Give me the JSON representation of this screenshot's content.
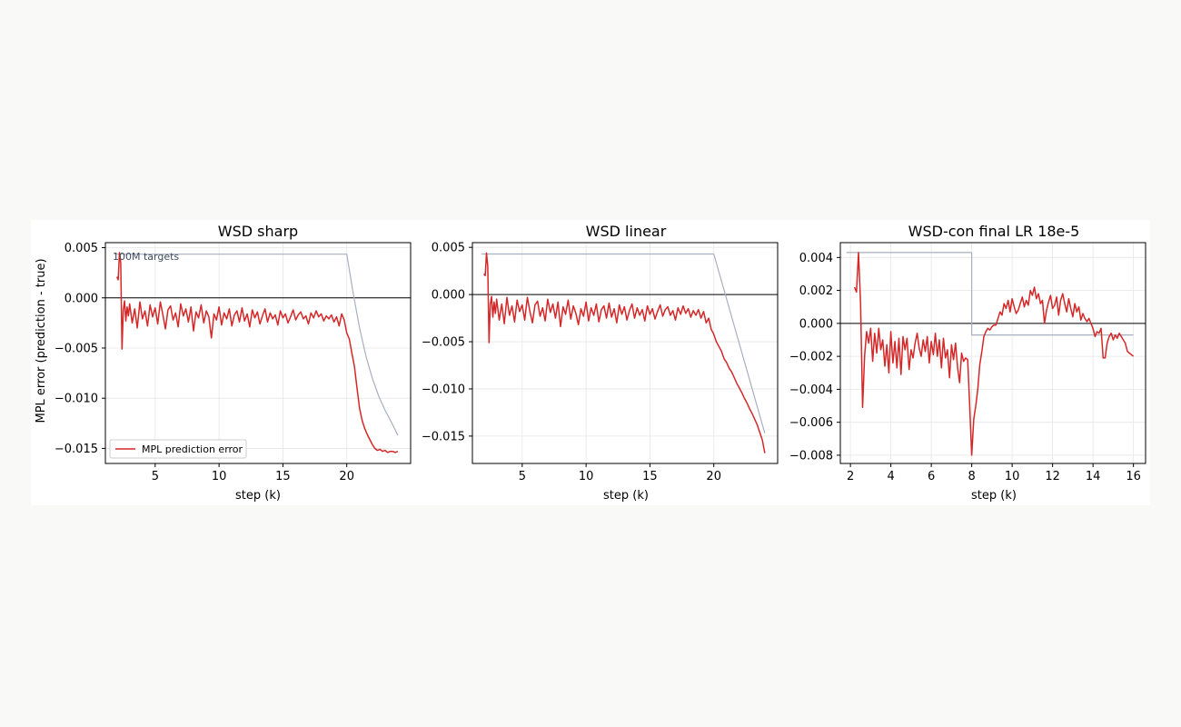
{
  "figure": {
    "ylabel": "MPL error (prediction - true)",
    "annotation": "100M targets",
    "legend_label": "MPL prediction error",
    "colors": {
      "error": "#d62728",
      "schedule": "#a9afbf",
      "zero_line": "#000000",
      "grid": "#e6e6e6"
    }
  },
  "chart_data": [
    {
      "type": "line",
      "title": "WSD sharp",
      "xlabel": "step (k)",
      "ylabel": "MPL error (prediction - true)",
      "xlim": [
        1.1,
        25.0
      ],
      "ylim": [
        -0.0165,
        0.0055
      ],
      "xticks": [
        5,
        10,
        15,
        20
      ],
      "xtick_labels": [
        "5",
        "10",
        "15",
        "20"
      ],
      "yticks": [
        0.005,
        0.0,
        -0.005,
        -0.01,
        -0.015
      ],
      "ytick_labels": [
        "0.005",
        "0.000",
        "−0.005",
        "−0.010",
        "−0.015"
      ],
      "grid": true,
      "legend": "lower-left",
      "series": [
        {
          "name": "MPL prediction error",
          "role": "error",
          "x": [
            2.0,
            2.1,
            2.2,
            2.3,
            2.4,
            2.5,
            2.6,
            2.7,
            2.8,
            2.9,
            3.0,
            3.2,
            3.4,
            3.6,
            3.8,
            4.0,
            4.2,
            4.4,
            4.6,
            4.8,
            5.0,
            5.2,
            5.4,
            5.6,
            5.8,
            6.0,
            6.2,
            6.4,
            6.6,
            6.8,
            7.0,
            7.2,
            7.4,
            7.6,
            7.8,
            8.0,
            8.2,
            8.4,
            8.6,
            8.8,
            9.0,
            9.2,
            9.4,
            9.6,
            9.8,
            10.0,
            10.2,
            10.4,
            10.6,
            10.8,
            11.0,
            11.2,
            11.4,
            11.6,
            11.8,
            12.0,
            12.2,
            12.4,
            12.6,
            12.8,
            13.0,
            13.2,
            13.4,
            13.6,
            13.8,
            14.0,
            14.2,
            14.4,
            14.6,
            14.8,
            15.0,
            15.2,
            15.4,
            15.6,
            15.8,
            16.0,
            16.2,
            16.4,
            16.6,
            16.8,
            17.0,
            17.2,
            17.4,
            17.6,
            17.8,
            18.0,
            18.2,
            18.4,
            18.6,
            18.8,
            19.0,
            19.2,
            19.4,
            19.6,
            19.8,
            20.0,
            20.2,
            20.4,
            20.6,
            20.8,
            21.0,
            21.2,
            21.4,
            21.6,
            21.8,
            22.0,
            22.2,
            22.4,
            22.6,
            22.8,
            23.0,
            23.2,
            23.4,
            23.6,
            23.8,
            24.0
          ],
          "y": [
            0.0021,
            0.0018,
            0.0045,
            0.0035,
            -0.0051,
            -0.0012,
            -0.0003,
            -0.0023,
            -0.0009,
            -0.0018,
            -0.0006,
            -0.0025,
            -0.0011,
            -0.003,
            -0.0004,
            -0.0021,
            -0.0013,
            -0.0028,
            -0.0007,
            -0.0019,
            -0.001,
            -0.0026,
            -0.0004,
            -0.0017,
            -0.0031,
            -0.0012,
            -0.0008,
            -0.0022,
            -0.0015,
            -0.0029,
            -0.0006,
            -0.0018,
            -0.0011,
            -0.0024,
            -0.0009,
            -0.0033,
            -0.0014,
            -0.002,
            -0.0007,
            -0.0025,
            -0.0013,
            -0.0019,
            -0.004,
            -0.0016,
            -0.0022,
            -0.0009,
            -0.0027,
            -0.0015,
            -0.0021,
            -0.0011,
            -0.0028,
            -0.0017,
            -0.0013,
            -0.0024,
            -0.001,
            -0.0023,
            -0.0016,
            -0.0029,
            -0.0012,
            -0.002,
            -0.0014,
            -0.0026,
            -0.0018,
            -0.0011,
            -0.0024,
            -0.0015,
            -0.0021,
            -0.0017,
            -0.0027,
            -0.0013,
            -0.002,
            -0.0016,
            -0.0025,
            -0.0019,
            -0.0012,
            -0.0022,
            -0.0017,
            -0.0014,
            -0.0021,
            -0.0018,
            -0.0026,
            -0.0015,
            -0.002,
            -0.0013,
            -0.0019,
            -0.0016,
            -0.0023,
            -0.0018,
            -0.0021,
            -0.0017,
            -0.0024,
            -0.0019,
            -0.0028,
            -0.0016,
            -0.0022,
            -0.0035,
            -0.0041,
            -0.0055,
            -0.0068,
            -0.009,
            -0.011,
            -0.0122,
            -0.013,
            -0.0136,
            -0.0141,
            -0.0146,
            -0.015,
            -0.0152,
            -0.0151,
            -0.0153,
            -0.0152,
            -0.0154,
            -0.0153,
            -0.0153,
            -0.0154,
            -0.0153
          ]
        },
        {
          "name": "",
          "role": "schedule",
          "x": [
            1.8,
            20.0,
            20.5,
            21.0,
            21.5,
            22.0,
            22.5,
            23.0,
            23.5,
            24.0
          ],
          "y": [
            0.00435,
            0.00435,
            0.0005,
            -0.003,
            -0.0058,
            -0.008,
            -0.0098,
            -0.0112,
            -0.0124,
            -0.0137
          ]
        }
      ]
    },
    {
      "type": "line",
      "title": "WSD linear",
      "xlabel": "step (k)",
      "ylabel": "",
      "xlim": [
        1.1,
        25.0
      ],
      "ylim": [
        -0.0179,
        0.0055
      ],
      "xticks": [
        5,
        10,
        15,
        20
      ],
      "xtick_labels": [
        "5",
        "10",
        "15",
        "20"
      ],
      "yticks": [
        0.005,
        0.0,
        -0.005,
        -0.01,
        -0.015
      ],
      "ytick_labels": [
        "0.005",
        "0.000",
        "−0.005",
        "−0.010",
        "−0.015"
      ],
      "grid": true,
      "legend": "",
      "series": [
        {
          "name": "MPL prediction error",
          "role": "error",
          "x": [
            2.0,
            2.1,
            2.2,
            2.3,
            2.4,
            2.5,
            2.6,
            2.7,
            2.8,
            2.9,
            3.0,
            3.2,
            3.4,
            3.6,
            3.8,
            4.0,
            4.2,
            4.4,
            4.6,
            4.8,
            5.0,
            5.2,
            5.4,
            5.6,
            5.8,
            6.0,
            6.2,
            6.4,
            6.6,
            6.8,
            7.0,
            7.2,
            7.4,
            7.6,
            7.8,
            8.0,
            8.2,
            8.4,
            8.6,
            8.8,
            9.0,
            9.2,
            9.4,
            9.6,
            9.8,
            10.0,
            10.2,
            10.4,
            10.6,
            10.8,
            11.0,
            11.2,
            11.4,
            11.6,
            11.8,
            12.0,
            12.2,
            12.4,
            12.6,
            12.8,
            13.0,
            13.2,
            13.4,
            13.6,
            13.8,
            14.0,
            14.2,
            14.4,
            14.6,
            14.8,
            15.0,
            15.2,
            15.4,
            15.6,
            15.8,
            16.0,
            16.2,
            16.4,
            16.6,
            16.8,
            17.0,
            17.2,
            17.4,
            17.6,
            17.8,
            18.0,
            18.2,
            18.4,
            18.6,
            18.8,
            19.0,
            19.2,
            19.4,
            19.6,
            19.8,
            20.0,
            20.2,
            20.4,
            20.6,
            20.8,
            21.0,
            21.2,
            21.4,
            21.6,
            21.8,
            22.0,
            22.2,
            22.4,
            22.6,
            22.8,
            23.0,
            23.2,
            23.4,
            23.6,
            23.8,
            24.0
          ],
          "y": [
            0.0022,
            0.002,
            0.0044,
            0.003,
            -0.0051,
            -0.001,
            -0.0002,
            -0.0024,
            -0.0008,
            -0.002,
            -0.0005,
            -0.0027,
            -0.001,
            -0.0031,
            -0.0003,
            -0.0022,
            -0.0012,
            -0.0029,
            -0.0006,
            -0.0018,
            -0.0011,
            -0.0027,
            -0.0003,
            -0.0018,
            -0.003,
            -0.0011,
            -0.0007,
            -0.0023,
            -0.0014,
            -0.0028,
            -0.0005,
            -0.0019,
            -0.001,
            -0.0025,
            -0.0008,
            -0.0034,
            -0.0013,
            -0.0021,
            -0.0006,
            -0.0026,
            -0.0012,
            -0.002,
            -0.0032,
            -0.0015,
            -0.0023,
            -0.0008,
            -0.0028,
            -0.0014,
            -0.0022,
            -0.001,
            -0.0029,
            -0.0016,
            -0.0012,
            -0.0025,
            -0.0009,
            -0.0024,
            -0.0015,
            -0.003,
            -0.0011,
            -0.0021,
            -0.0013,
            -0.0027,
            -0.0017,
            -0.001,
            -0.0025,
            -0.0014,
            -0.0022,
            -0.0016,
            -0.0028,
            -0.0012,
            -0.0021,
            -0.0015,
            -0.0026,
            -0.0018,
            -0.0011,
            -0.0023,
            -0.0016,
            -0.0013,
            -0.0022,
            -0.0017,
            -0.0027,
            -0.0014,
            -0.0021,
            -0.0012,
            -0.002,
            -0.0015,
            -0.0024,
            -0.0017,
            -0.0022,
            -0.0016,
            -0.0025,
            -0.0018,
            -0.003,
            -0.0025,
            -0.0037,
            -0.0042,
            -0.005,
            -0.0055,
            -0.006,
            -0.0068,
            -0.0072,
            -0.0078,
            -0.0082,
            -0.0088,
            -0.0094,
            -0.0099,
            -0.0104,
            -0.011,
            -0.0115,
            -0.0121,
            -0.0126,
            -0.0132,
            -0.0138,
            -0.0146,
            -0.0154,
            -0.0168
          ]
        },
        {
          "name": "",
          "role": "schedule",
          "x": [
            1.8,
            20.0,
            24.0
          ],
          "y": [
            0.0043,
            0.0043,
            -0.0147
          ]
        }
      ]
    },
    {
      "type": "line",
      "title": "WSD-con final LR 18e-5",
      "xlabel": "step (k)",
      "ylabel": "",
      "xlim": [
        1.5,
        16.6
      ],
      "ylim": [
        -0.0085,
        0.0049
      ],
      "xticks": [
        2,
        4,
        6,
        8,
        10,
        12,
        14,
        16
      ],
      "xtick_labels": [
        "2",
        "4",
        "6",
        "8",
        "10",
        "12",
        "14",
        "16"
      ],
      "yticks": [
        0.004,
        0.002,
        0.0,
        -0.002,
        -0.004,
        -0.006,
        -0.008
      ],
      "ytick_labels": [
        "0.004",
        "0.002",
        "0.000",
        "−0.002",
        "−0.004",
        "−0.006",
        "−0.008"
      ],
      "grid": true,
      "legend": "",
      "series": [
        {
          "name": "MPL prediction error",
          "role": "error",
          "x": [
            2.2,
            2.3,
            2.4,
            2.5,
            2.6,
            2.7,
            2.8,
            2.9,
            3.0,
            3.1,
            3.2,
            3.3,
            3.4,
            3.5,
            3.6,
            3.7,
            3.8,
            3.9,
            4.0,
            4.1,
            4.2,
            4.3,
            4.4,
            4.5,
            4.6,
            4.7,
            4.8,
            4.9,
            5.0,
            5.1,
            5.2,
            5.3,
            5.4,
            5.5,
            5.6,
            5.7,
            5.8,
            5.9,
            6.0,
            6.1,
            6.2,
            6.3,
            6.4,
            6.5,
            6.6,
            6.7,
            6.8,
            6.9,
            7.0,
            7.1,
            7.2,
            7.3,
            7.4,
            7.5,
            7.6,
            7.7,
            7.8,
            7.9,
            8.0,
            8.1,
            8.2,
            8.3,
            8.4,
            8.5,
            8.6,
            8.7,
            8.8,
            8.9,
            9.0,
            9.1,
            9.2,
            9.3,
            9.4,
            9.5,
            9.6,
            9.7,
            9.8,
            9.9,
            10.0,
            10.1,
            10.2,
            10.3,
            10.4,
            10.5,
            10.6,
            10.7,
            10.8,
            10.9,
            11.0,
            11.1,
            11.2,
            11.3,
            11.4,
            11.5,
            11.6,
            11.7,
            11.8,
            11.9,
            12.0,
            12.1,
            12.2,
            12.3,
            12.4,
            12.5,
            12.6,
            12.7,
            12.8,
            12.9,
            13.0,
            13.1,
            13.2,
            13.3,
            13.4,
            13.5,
            13.6,
            13.7,
            13.8,
            13.9,
            14.0,
            14.1,
            14.2,
            14.3,
            14.4,
            14.5,
            14.6,
            14.7,
            14.8,
            14.9,
            15.0,
            15.1,
            15.2,
            15.3,
            15.4,
            15.5,
            15.6,
            15.7,
            15.8,
            15.9,
            16.0
          ],
          "y": [
            0.0022,
            0.0019,
            0.0043,
            0.0012,
            -0.0051,
            -0.002,
            -0.0005,
            -0.0012,
            -0.0003,
            -0.0023,
            -0.0006,
            -0.0018,
            -0.0003,
            -0.0016,
            -0.001,
            -0.0026,
            -0.0013,
            -0.003,
            -0.0005,
            -0.0024,
            -0.0011,
            -0.0027,
            -0.0009,
            -0.0031,
            -0.0008,
            -0.0016,
            -0.0009,
            -0.0028,
            -0.0016,
            -0.0021,
            -0.0012,
            -0.0006,
            -0.0015,
            -0.002,
            -0.001,
            -0.0017,
            -0.0008,
            -0.0024,
            -0.0011,
            -0.0019,
            -0.0006,
            -0.002,
            -0.001,
            -0.0027,
            -0.0009,
            -0.0021,
            -0.0016,
            -0.0033,
            -0.0013,
            -0.0022,
            -0.0012,
            -0.0027,
            -0.0036,
            -0.0018,
            -0.0023,
            -0.0021,
            -0.0022,
            -0.005,
            -0.008,
            -0.0058,
            -0.005,
            -0.004,
            -0.0025,
            -0.0017,
            -0.0008,
            -0.0005,
            -0.0003,
            -0.0004,
            -0.0002,
            -0.0001,
            -0.0001,
            0.0003,
            0.0007,
            0.0005,
            0.0012,
            0.0009,
            0.0014,
            0.0007,
            0.0015,
            0.001,
            0.0006,
            0.0008,
            0.0012,
            0.0016,
            0.001,
            0.0014,
            0.0011,
            0.002,
            0.0017,
            0.0022,
            0.0015,
            0.0018,
            0.0012,
            0.0014,
            0.0,
            0.0008,
            0.0013,
            0.0017,
            0.0009,
            0.0011,
            0.0016,
            0.0005,
            0.0014,
            0.0018,
            0.0012,
            0.0007,
            0.0015,
            0.0009,
            0.0004,
            0.0012,
            0.0007,
            0.001,
            0.0002,
            0.0006,
            0.0003,
            0.0001,
            0.0003,
            0.0,
            -0.0003,
            -0.0008,
            -0.0005,
            -0.0006,
            -0.0003,
            -0.0021,
            -0.0021,
            -0.0012,
            -0.0008,
            -0.0006,
            -0.001,
            -0.0007,
            -0.0009,
            -0.0006,
            -0.0008,
            -0.001,
            -0.0012,
            -0.0017,
            -0.0018,
            -0.0019,
            -0.002
          ]
        },
        {
          "name": "",
          "role": "schedule",
          "x": [
            1.8,
            8.0,
            8.0,
            16.0
          ],
          "y": [
            0.0043,
            0.0043,
            -0.0007,
            -0.0007
          ]
        }
      ]
    }
  ]
}
